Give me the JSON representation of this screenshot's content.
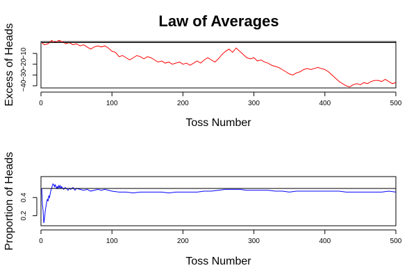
{
  "figure": {
    "title": "Law of Averages"
  },
  "chart_data": [
    {
      "type": "line",
      "xlabel": "Toss Number",
      "ylabel": "Excess of Heads",
      "xlim": [
        0,
        500
      ],
      "ylim": [
        -42,
        1
      ],
      "xticks": [
        0,
        100,
        200,
        300,
        400,
        500
      ],
      "xtick_labels": [
        "0",
        "100",
        "200",
        "300",
        "400",
        "500"
      ],
      "yticks": [
        -10,
        -20,
        -30,
        -40
      ],
      "ytick_labels": [
        "−10",
        "−20",
        "−30",
        "−40"
      ],
      "grid": false,
      "series": [
        {
          "color": "#ff0000",
          "points": [
            [
              1,
              0
            ],
            [
              5,
              -2
            ],
            [
              10,
              -1
            ],
            [
              15,
              2
            ],
            [
              20,
              0
            ],
            [
              25,
              2
            ],
            [
              30,
              1
            ],
            [
              35,
              -1
            ],
            [
              40,
              0
            ],
            [
              45,
              -2
            ],
            [
              50,
              -1
            ],
            [
              55,
              -3
            ],
            [
              60,
              -2
            ],
            [
              65,
              -4
            ],
            [
              70,
              -6
            ],
            [
              75,
              -4
            ],
            [
              80,
              -3
            ],
            [
              85,
              -4
            ],
            [
              90,
              -3
            ],
            [
              95,
              -5
            ],
            [
              100,
              -8
            ],
            [
              105,
              -9
            ],
            [
              110,
              -13
            ],
            [
              115,
              -12
            ],
            [
              120,
              -14
            ],
            [
              125,
              -16
            ],
            [
              130,
              -14
            ],
            [
              135,
              -12
            ],
            [
              140,
              -13
            ],
            [
              145,
              -15
            ],
            [
              150,
              -13
            ],
            [
              155,
              -14
            ],
            [
              160,
              -16
            ],
            [
              165,
              -18
            ],
            [
              170,
              -17
            ],
            [
              175,
              -19
            ],
            [
              180,
              -18
            ],
            [
              185,
              -20
            ],
            [
              190,
              -19
            ],
            [
              195,
              -18
            ],
            [
              200,
              -20
            ],
            [
              205,
              -19
            ],
            [
              210,
              -21
            ],
            [
              215,
              -19
            ],
            [
              220,
              -17
            ],
            [
              225,
              -19
            ],
            [
              230,
              -16
            ],
            [
              235,
              -14
            ],
            [
              240,
              -16
            ],
            [
              245,
              -18
            ],
            [
              250,
              -15
            ],
            [
              255,
              -11
            ],
            [
              260,
              -8
            ],
            [
              265,
              -6
            ],
            [
              270,
              -9
            ],
            [
              275,
              -5
            ],
            [
              280,
              -8
            ],
            [
              285,
              -11
            ],
            [
              290,
              -14
            ],
            [
              295,
              -15
            ],
            [
              300,
              -14
            ],
            [
              305,
              -17
            ],
            [
              310,
              -16
            ],
            [
              315,
              -18
            ],
            [
              320,
              -19
            ],
            [
              325,
              -21
            ],
            [
              330,
              -22
            ],
            [
              335,
              -23
            ],
            [
              340,
              -25
            ],
            [
              345,
              -27
            ],
            [
              350,
              -29
            ],
            [
              355,
              -30
            ],
            [
              360,
              -28
            ],
            [
              365,
              -27
            ],
            [
              370,
              -25
            ],
            [
              375,
              -24
            ],
            [
              380,
              -25
            ],
            [
              385,
              -24
            ],
            [
              390,
              -23
            ],
            [
              395,
              -24
            ],
            [
              400,
              -25
            ],
            [
              405,
              -27
            ],
            [
              410,
              -30
            ],
            [
              415,
              -33
            ],
            [
              420,
              -36
            ],
            [
              425,
              -38
            ],
            [
              430,
              -40
            ],
            [
              435,
              -41
            ],
            [
              440,
              -39
            ],
            [
              445,
              -38
            ],
            [
              450,
              -39
            ],
            [
              455,
              -37
            ],
            [
              460,
              -38
            ],
            [
              465,
              -36
            ],
            [
              470,
              -35
            ],
            [
              475,
              -35
            ],
            [
              480,
              -36
            ],
            [
              485,
              -34
            ],
            [
              490,
              -36
            ],
            [
              495,
              -38
            ],
            [
              500,
              -37
            ]
          ]
        },
        {
          "color": "#000000",
          "points": [
            [
              1,
              0
            ],
            [
              500,
              0
            ]
          ]
        }
      ]
    },
    {
      "type": "line",
      "xlabel": "Toss Number",
      "ylabel": "Proportion of Heads",
      "xlim": [
        0,
        500
      ],
      "ylim": [
        0.09,
        0.63
      ],
      "xticks": [
        0,
        100,
        200,
        300,
        400,
        500
      ],
      "xtick_labels": [
        "0",
        "100",
        "200",
        "300",
        "400",
        "500"
      ],
      "yticks": [
        0.2,
        0.4
      ],
      "ytick_labels": [
        "0.2",
        "0.4"
      ],
      "grid": false,
      "series": [
        {
          "color": "#0000ff",
          "points": [
            [
              1,
              0.5
            ],
            [
              2,
              0.33
            ],
            [
              3,
              0.25
            ],
            [
              4,
              0.12
            ],
            [
              5,
              0.17
            ],
            [
              6,
              0.25
            ],
            [
              7,
              0.3
            ],
            [
              8,
              0.35
            ],
            [
              9,
              0.38
            ],
            [
              10,
              0.36
            ],
            [
              11,
              0.42
            ],
            [
              12,
              0.4
            ],
            [
              13,
              0.44
            ],
            [
              14,
              0.48
            ],
            [
              15,
              0.5
            ],
            [
              16,
              0.53
            ],
            [
              17,
              0.55
            ],
            [
              18,
              0.54
            ],
            [
              19,
              0.52
            ],
            [
              20,
              0.54
            ],
            [
              21,
              0.52
            ],
            [
              22,
              0.5
            ],
            [
              23,
              0.52
            ],
            [
              24,
              0.5
            ],
            [
              25,
              0.53
            ],
            [
              26,
              0.51
            ],
            [
              27,
              0.53
            ],
            [
              28,
              0.5
            ],
            [
              29,
              0.52
            ],
            [
              30,
              0.51
            ],
            [
              32,
              0.49
            ],
            [
              34,
              0.51
            ],
            [
              36,
              0.5
            ],
            [
              38,
              0.48
            ],
            [
              40,
              0.5
            ],
            [
              42,
              0.49
            ],
            [
              45,
              0.51
            ],
            [
              48,
              0.48
            ],
            [
              50,
              0.5
            ],
            [
              55,
              0.49
            ],
            [
              60,
              0.48
            ],
            [
              65,
              0.49
            ],
            [
              70,
              0.47
            ],
            [
              75,
              0.48
            ],
            [
              80,
              0.49
            ],
            [
              85,
              0.48
            ],
            [
              90,
              0.49
            ],
            [
              95,
              0.48
            ],
            [
              100,
              0.47
            ],
            [
              110,
              0.46
            ],
            [
              120,
              0.46
            ],
            [
              130,
              0.45
            ],
            [
              140,
              0.46
            ],
            [
              150,
              0.46
            ],
            [
              160,
              0.46
            ],
            [
              170,
              0.46
            ],
            [
              180,
              0.45
            ],
            [
              190,
              0.46
            ],
            [
              200,
              0.46
            ],
            [
              210,
              0.46
            ],
            [
              220,
              0.46
            ],
            [
              230,
              0.47
            ],
            [
              240,
              0.47
            ],
            [
              250,
              0.48
            ],
            [
              260,
              0.49
            ],
            [
              270,
              0.49
            ],
            [
              280,
              0.49
            ],
            [
              290,
              0.48
            ],
            [
              300,
              0.48
            ],
            [
              310,
              0.48
            ],
            [
              320,
              0.48
            ],
            [
              330,
              0.47
            ],
            [
              340,
              0.47
            ],
            [
              350,
              0.46
            ],
            [
              360,
              0.47
            ],
            [
              370,
              0.47
            ],
            [
              380,
              0.47
            ],
            [
              390,
              0.47
            ],
            [
              400,
              0.47
            ],
            [
              410,
              0.47
            ],
            [
              420,
              0.47
            ],
            [
              430,
              0.46
            ],
            [
              440,
              0.46
            ],
            [
              450,
              0.46
            ],
            [
              460,
              0.46
            ],
            [
              470,
              0.46
            ],
            [
              480,
              0.46
            ],
            [
              490,
              0.47
            ],
            [
              500,
              0.46
            ]
          ]
        },
        {
          "color": "#000000",
          "points": [
            [
              1,
              0.5
            ],
            [
              500,
              0.5
            ]
          ]
        }
      ]
    }
  ]
}
